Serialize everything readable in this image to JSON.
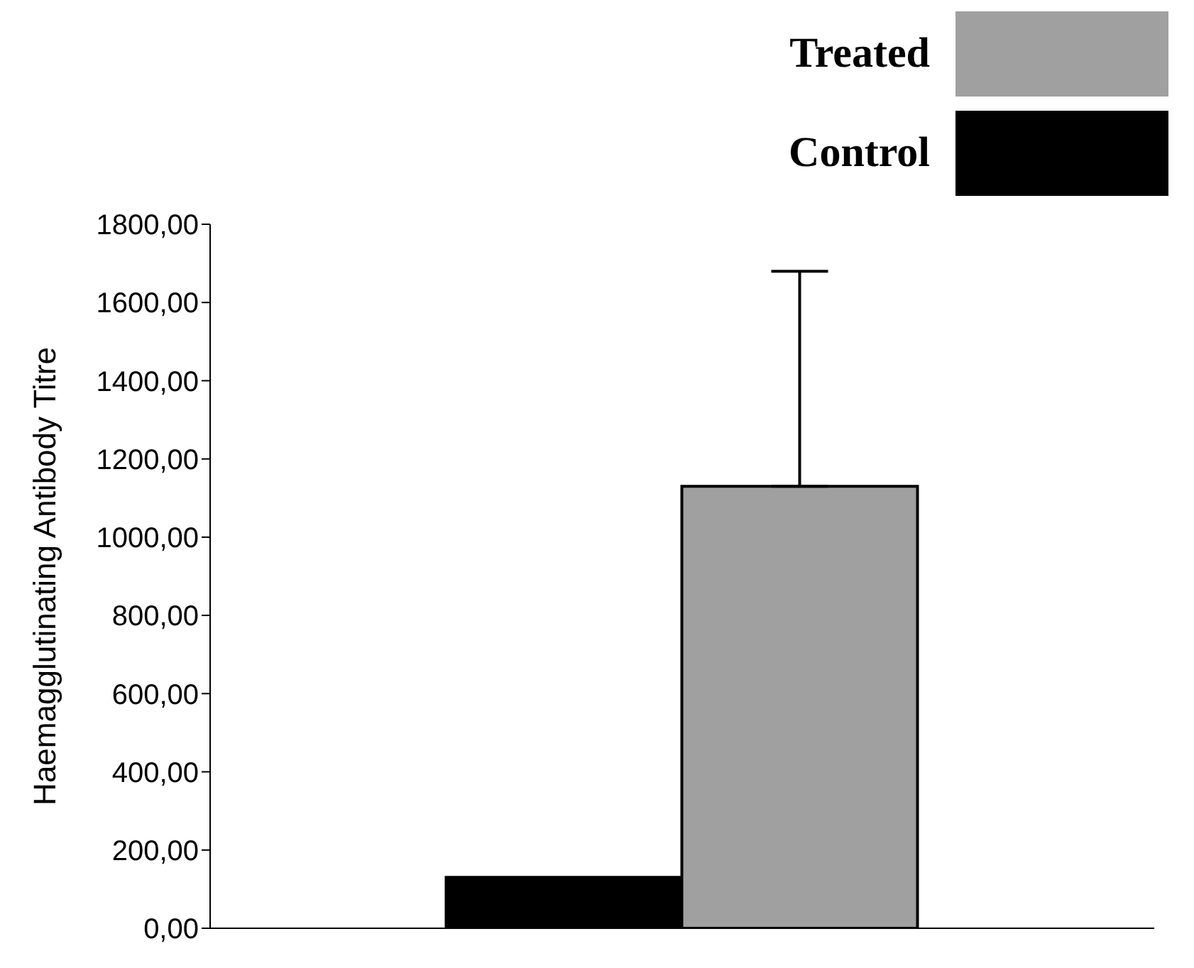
{
  "chart_data": {
    "type": "bar",
    "ylabel": "Haemagglutinating Antibody Titre",
    "categories": [
      null
    ],
    "series": [
      {
        "name": "Control",
        "color": "#000000",
        "values": [
          130
        ]
      },
      {
        "name": "Treated",
        "color": "#a0a0a0",
        "values": [
          1130
        ],
        "errors": [
          [
            1130,
            1680
          ]
        ]
      }
    ],
    "ylim": [
      0,
      1800
    ],
    "yticks": [
      {
        "value": 0,
        "label": "0,00"
      },
      {
        "value": 200,
        "label": "200,00"
      },
      {
        "value": 400,
        "label": "400,00"
      },
      {
        "value": 600,
        "label": "600,00"
      },
      {
        "value": 800,
        "label": "800,00"
      },
      {
        "value": 1000,
        "label": "1000,00"
      },
      {
        "value": 1200,
        "label": "1200,00"
      },
      {
        "value": 1400,
        "label": "1400,00"
      },
      {
        "value": 1600,
        "label": "1600,00"
      },
      {
        "value": 1800,
        "label": "1800,00"
      }
    ],
    "grid": false,
    "legend": "top right"
  }
}
